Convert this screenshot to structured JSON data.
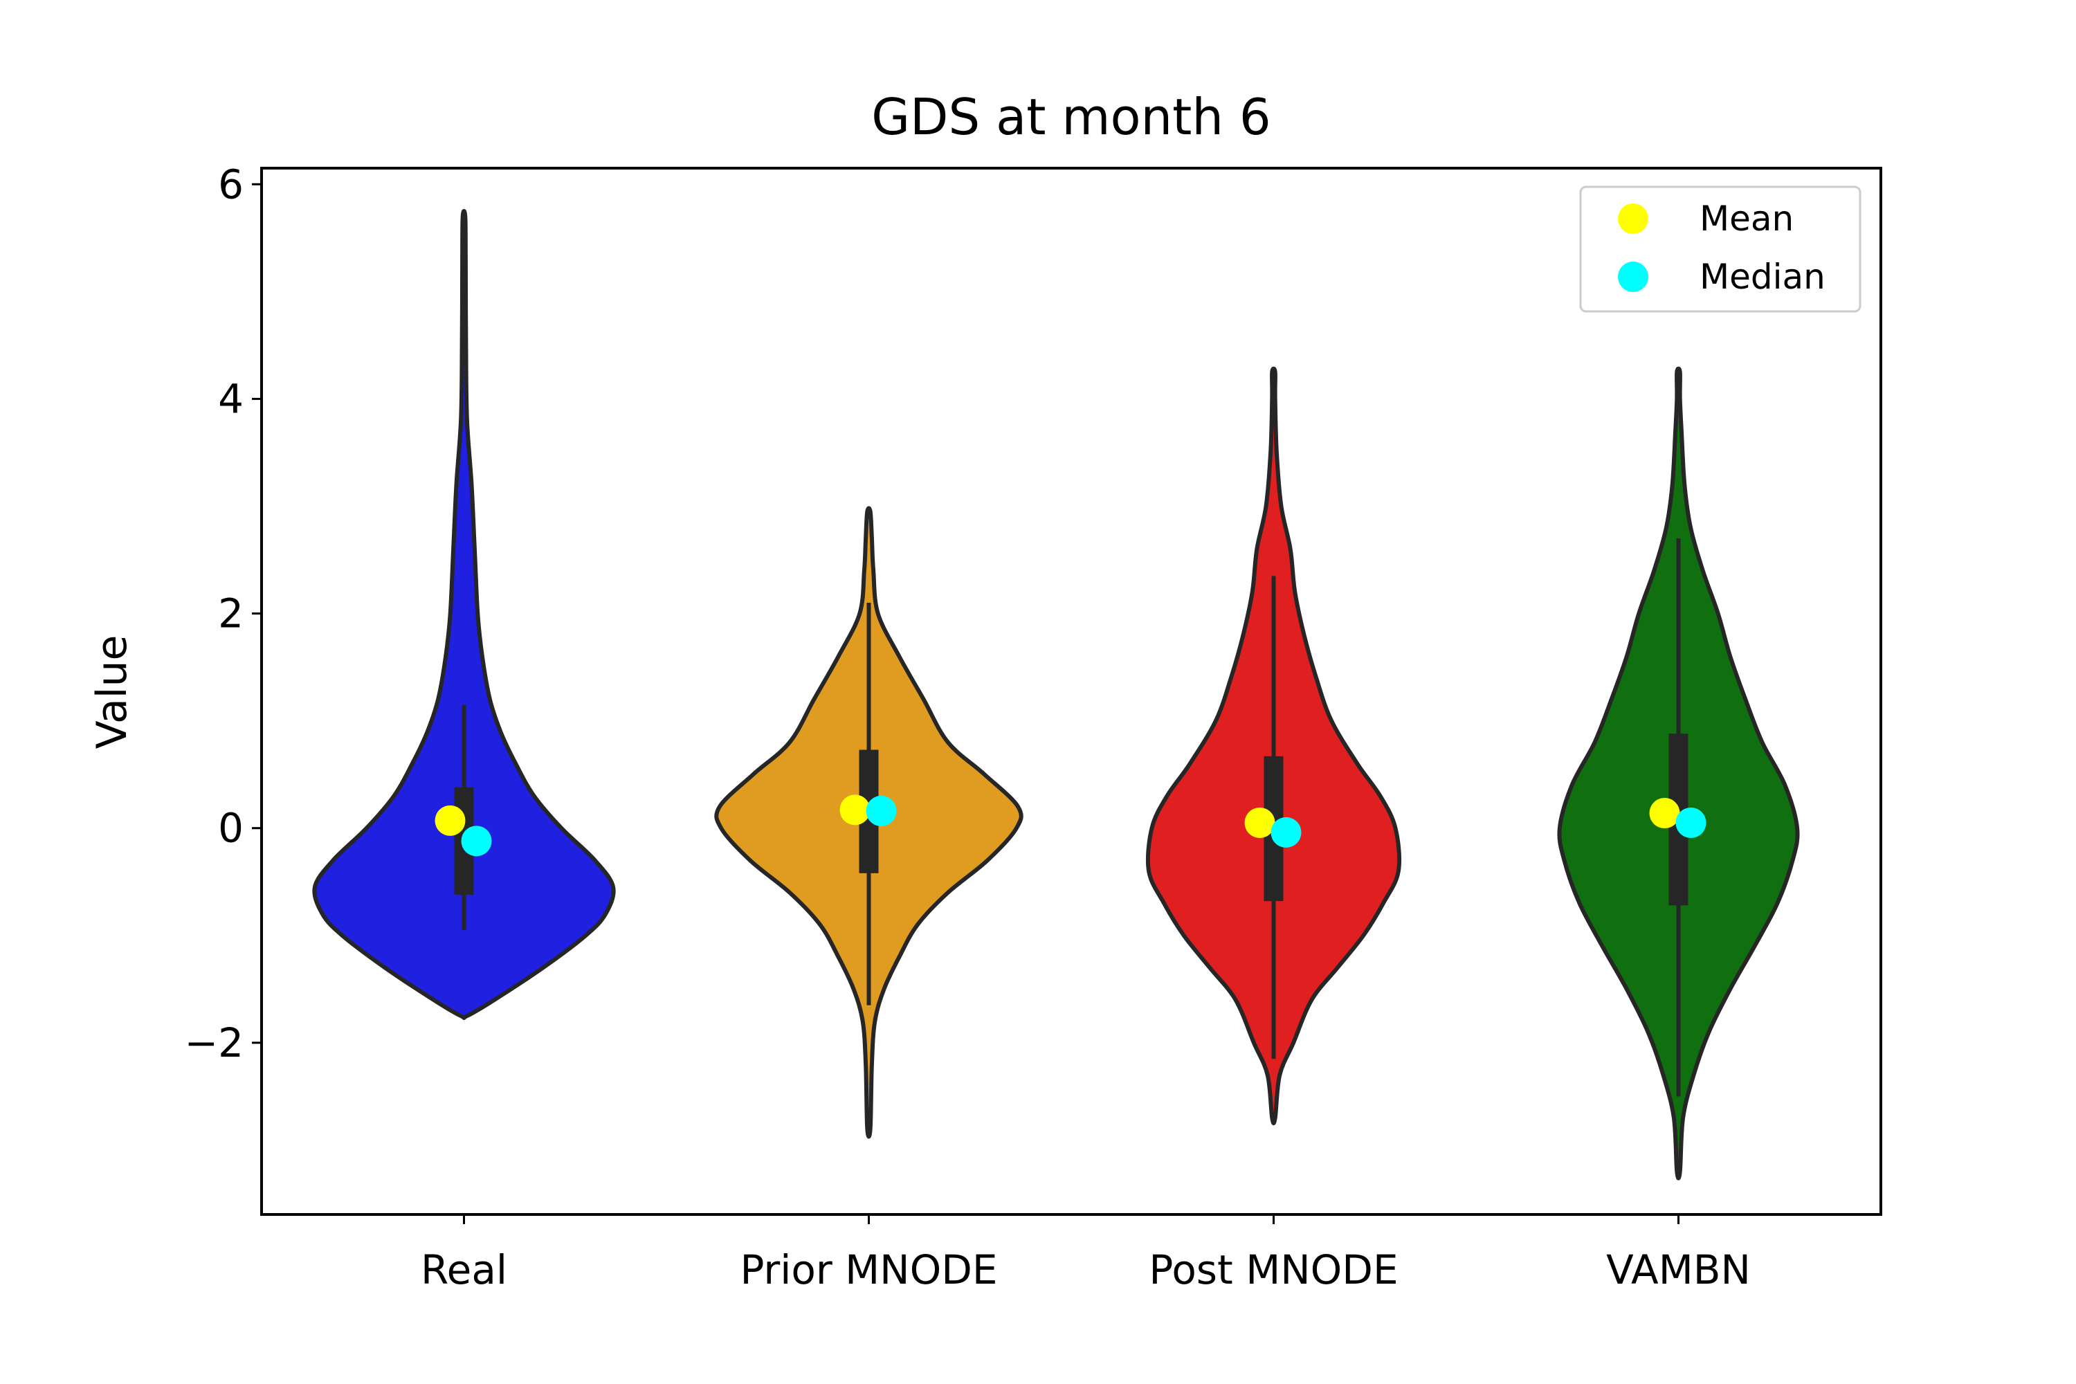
{
  "chart_data": {
    "type": "violin",
    "title": "GDS at month 6",
    "xlabel": "",
    "ylabel": "Value",
    "ylim": [
      -3.6,
      6.15
    ],
    "yticks": [
      -2,
      0,
      2,
      4,
      6
    ],
    "ytick_labels": [
      "−2",
      "0",
      "2",
      "4",
      "6"
    ],
    "grid": false,
    "legend": {
      "position": "top-right",
      "entries": [
        {
          "label": "Mean",
          "color": "#ffff00"
        },
        {
          "label": "Median",
          "color": "#00ffff"
        }
      ]
    },
    "categories": [
      "Real",
      "Prior MNODE",
      "Post MNODE",
      "VAMBN"
    ],
    "series": [
      {
        "category": "Real",
        "color": "#2020e0",
        "min": -1.75,
        "max": 5.7,
        "q1": -0.62,
        "q3": 0.38,
        "whisker_low": -0.95,
        "whisker_high": 1.15,
        "mean": 0.07,
        "median": -0.12,
        "density": [
          [
            -1.75,
            0.02
          ],
          [
            -1.6,
            0.2
          ],
          [
            -1.3,
            0.52
          ],
          [
            -1.0,
            0.8
          ],
          [
            -0.8,
            0.93
          ],
          [
            -0.55,
            0.98
          ],
          [
            -0.3,
            0.86
          ],
          [
            0.0,
            0.64
          ],
          [
            0.3,
            0.46
          ],
          [
            0.6,
            0.34
          ],
          [
            0.9,
            0.24
          ],
          [
            1.2,
            0.17
          ],
          [
            1.6,
            0.12
          ],
          [
            2.0,
            0.09
          ],
          [
            2.6,
            0.07
          ],
          [
            3.2,
            0.05
          ],
          [
            3.8,
            0.02
          ],
          [
            4.5,
            0.013
          ],
          [
            5.3,
            0.011
          ],
          [
            5.7,
            0.008
          ]
        ]
      },
      {
        "category": "Prior MNODE",
        "color": "#e09c20",
        "min": -2.8,
        "max": 2.95,
        "q1": -0.42,
        "q3": 0.73,
        "whisker_low": -1.65,
        "whisker_high": 2.1,
        "mean": 0.17,
        "median": 0.16,
        "density": [
          [
            -2.8,
            0.01
          ],
          [
            -2.2,
            0.02
          ],
          [
            -1.8,
            0.04
          ],
          [
            -1.5,
            0.1
          ],
          [
            -1.2,
            0.2
          ],
          [
            -0.9,
            0.32
          ],
          [
            -0.6,
            0.52
          ],
          [
            -0.3,
            0.78
          ],
          [
            0.0,
            0.97
          ],
          [
            0.2,
            0.98
          ],
          [
            0.5,
            0.76
          ],
          [
            0.8,
            0.52
          ],
          [
            1.2,
            0.36
          ],
          [
            1.6,
            0.2
          ],
          [
            2.0,
            0.06
          ],
          [
            2.4,
            0.03
          ],
          [
            2.7,
            0.02
          ],
          [
            2.95,
            0.01
          ]
        ]
      },
      {
        "category": "Post MNODE",
        "color": "#e02020",
        "min": -2.7,
        "max": 4.25,
        "q1": -0.68,
        "q3": 0.67,
        "whisker_low": -2.15,
        "whisker_high": 2.35,
        "mean": 0.05,
        "median": -0.04,
        "density": [
          [
            -2.7,
            0.01
          ],
          [
            -2.3,
            0.04
          ],
          [
            -2.0,
            0.13
          ],
          [
            -1.6,
            0.25
          ],
          [
            -1.3,
            0.42
          ],
          [
            -1.0,
            0.59
          ],
          [
            -0.7,
            0.72
          ],
          [
            -0.4,
            0.82
          ],
          [
            0.0,
            0.8
          ],
          [
            0.3,
            0.7
          ],
          [
            0.6,
            0.55
          ],
          [
            1.0,
            0.38
          ],
          [
            1.4,
            0.28
          ],
          [
            1.8,
            0.2
          ],
          [
            2.2,
            0.14
          ],
          [
            2.6,
            0.11
          ],
          [
            3.0,
            0.05
          ],
          [
            3.5,
            0.02
          ],
          [
            4.0,
            0.01
          ],
          [
            4.25,
            0.01
          ]
        ]
      },
      {
        "category": "VAMBN",
        "color": "#107010",
        "min": -3.2,
        "max": 4.25,
        "q1": -0.72,
        "q3": 0.88,
        "whisker_low": -2.5,
        "whisker_high": 2.7,
        "mean": 0.14,
        "median": 0.05,
        "density": [
          [
            -3.2,
            0.01
          ],
          [
            -2.7,
            0.03
          ],
          [
            -2.3,
            0.1
          ],
          [
            -1.9,
            0.2
          ],
          [
            -1.5,
            0.34
          ],
          [
            -1.1,
            0.5
          ],
          [
            -0.7,
            0.65
          ],
          [
            -0.3,
            0.75
          ],
          [
            0.0,
            0.78
          ],
          [
            0.4,
            0.7
          ],
          [
            0.8,
            0.55
          ],
          [
            1.2,
            0.44
          ],
          [
            1.6,
            0.34
          ],
          [
            2.0,
            0.26
          ],
          [
            2.4,
            0.16
          ],
          [
            2.8,
            0.08
          ],
          [
            3.2,
            0.04
          ],
          [
            3.7,
            0.02
          ],
          [
            4.0,
            0.01
          ],
          [
            4.25,
            0.01
          ]
        ]
      }
    ]
  }
}
